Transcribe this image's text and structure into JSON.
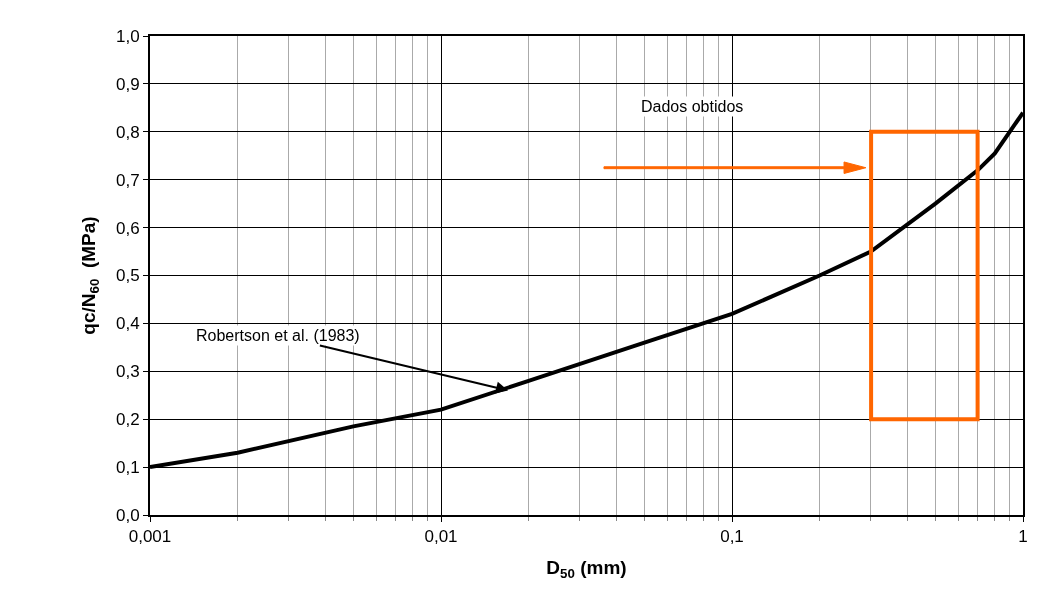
{
  "chart_data": {
    "type": "line",
    "xlabel": "D$_{50}$ (mm)",
    "ylabel": "qc/N$_{60}$  (MPa)",
    "log": "x",
    "grid": true,
    "marker": "none",
    "line_style": "solid",
    "xlim": [
      0.001,
      1
    ],
    "xticks": [
      {
        "value": 0.001,
        "label": "0,001"
      },
      {
        "value": 0.01,
        "label": "0,01"
      },
      {
        "value": 0.1,
        "label": "0,1"
      },
      {
        "value": 1,
        "label": "1"
      }
    ],
    "ylim": [
      0,
      1
    ],
    "yticks": [
      {
        "value": 0,
        "label": "0,0"
      },
      {
        "value": 0.1,
        "label": "0,1"
      },
      {
        "value": 0.2,
        "label": "0,2"
      },
      {
        "value": 0.3,
        "label": "0,3"
      },
      {
        "value": 0.4,
        "label": "0,4"
      },
      {
        "value": 0.5,
        "label": "0,5"
      },
      {
        "value": 0.6,
        "label": "0,6"
      },
      {
        "value": 0.7,
        "label": "0,7"
      },
      {
        "value": 0.8,
        "label": "0,8"
      },
      {
        "value": 0.9,
        "label": "0,9"
      },
      {
        "value": 1,
        "label": "1,0"
      }
    ],
    "series": [
      {
        "color": "#000000",
        "x": [
          0.001,
          0.002,
          0.005,
          0.01,
          0.02,
          0.05,
          0.1,
          0.2,
          0.3,
          0.5,
          0.7,
          0.8,
          0.9,
          1
        ],
        "values": [
          0.1,
          0.13,
          0.185,
          0.22,
          0.28,
          0.36,
          0.42,
          0.5,
          0.55,
          0.65,
          0.72,
          0.755,
          0.8,
          0.84
        ]
      }
    ],
    "annotations": [
      {
        "text": "Robertson et al. (1983)",
        "x": 0.017,
        "y": 0.26
      },
      "Dados obtidos"
    ]
  }
}
